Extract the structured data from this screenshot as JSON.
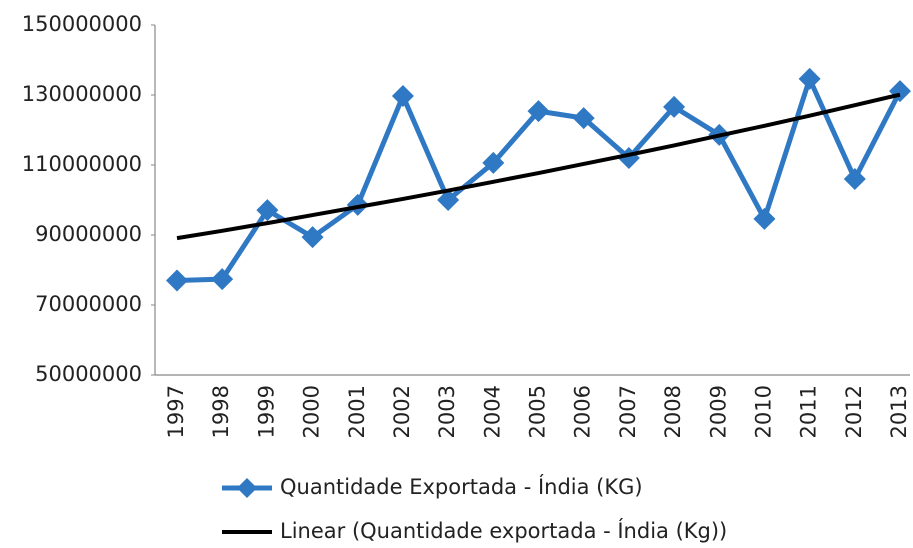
{
  "chart_data": {
    "type": "line",
    "categories": [
      "1997",
      "1998",
      "1999",
      "2000",
      "2001",
      "2002",
      "2003",
      "2004",
      "2005",
      "2006",
      "2007",
      "2008",
      "2009",
      "2010",
      "2011",
      "2012",
      "2013"
    ],
    "series": [
      {
        "name": "Quantidade Exportada - Índia (KG)",
        "color": "#2f78c4",
        "marker": "diamond",
        "values": [
          77000000,
          77400000,
          97100000,
          89400000,
          98600000,
          129700000,
          100000000,
          110600000,
          125400000,
          123400000,
          112000000,
          126600000,
          118600000,
          94600000,
          134600000,
          106000000,
          131100000
        ]
      },
      {
        "name": "Linear (Quantidade exportada - Índia (Kg))",
        "color": "#000000",
        "marker": "none",
        "values": [
          89100000,
          91200000,
          93400000,
          95700000,
          98000000,
          100300000,
          102700000,
          105200000,
          107700000,
          110300000,
          112900000,
          115600000,
          118400000,
          121200000,
          124100000,
          127100000,
          130100000
        ]
      }
    ],
    "ylim": [
      50000000,
      150000000
    ],
    "yticks": [
      50000000,
      70000000,
      90000000,
      110000000,
      130000000,
      150000000
    ],
    "grid": false,
    "legend": "bottom"
  }
}
